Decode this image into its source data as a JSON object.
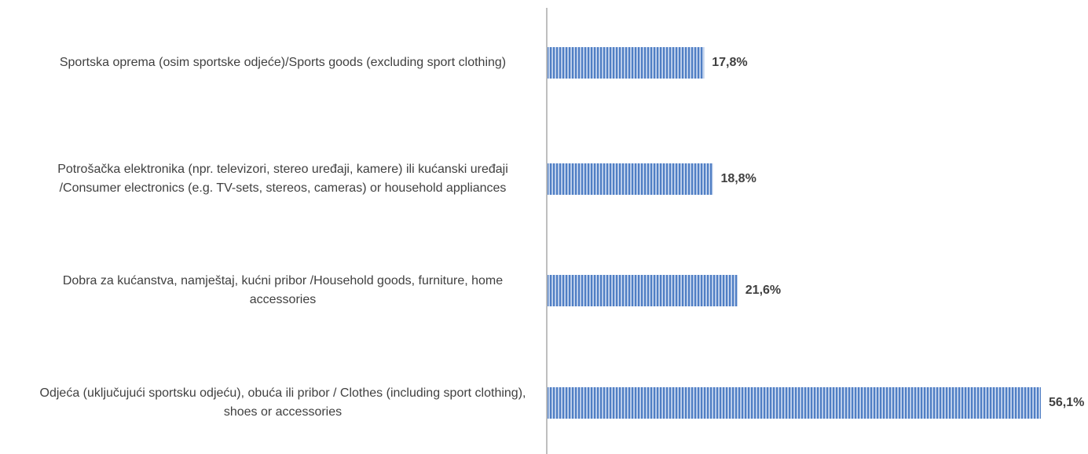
{
  "chart_data": {
    "type": "hbar",
    "categories": [
      "Sportska oprema (osim sportske odjeće)/Sports goods (excluding sport clothing)",
      "Potrošačka elektronika (npr. televizori, stereo uređaji, kamere) ili kućanski uređaji /Consumer electronics (e.g. TV-sets, stereos, cameras) or household appliances",
      "Dobra za kućanstva, namještaj, kućni pribor  /Household goods, furniture, home accessories",
      "Odjeća (uključujući sportsku odjeću), obuća ili pribor / Clothes (including sport clothing), shoes or accessories"
    ],
    "values": [
      17.8,
      18.8,
      21.6,
      56.1
    ],
    "value_labels": [
      "17,8%",
      "18,8%",
      "21,6%",
      "56,1%"
    ],
    "color": "#4f7ec4"
  }
}
